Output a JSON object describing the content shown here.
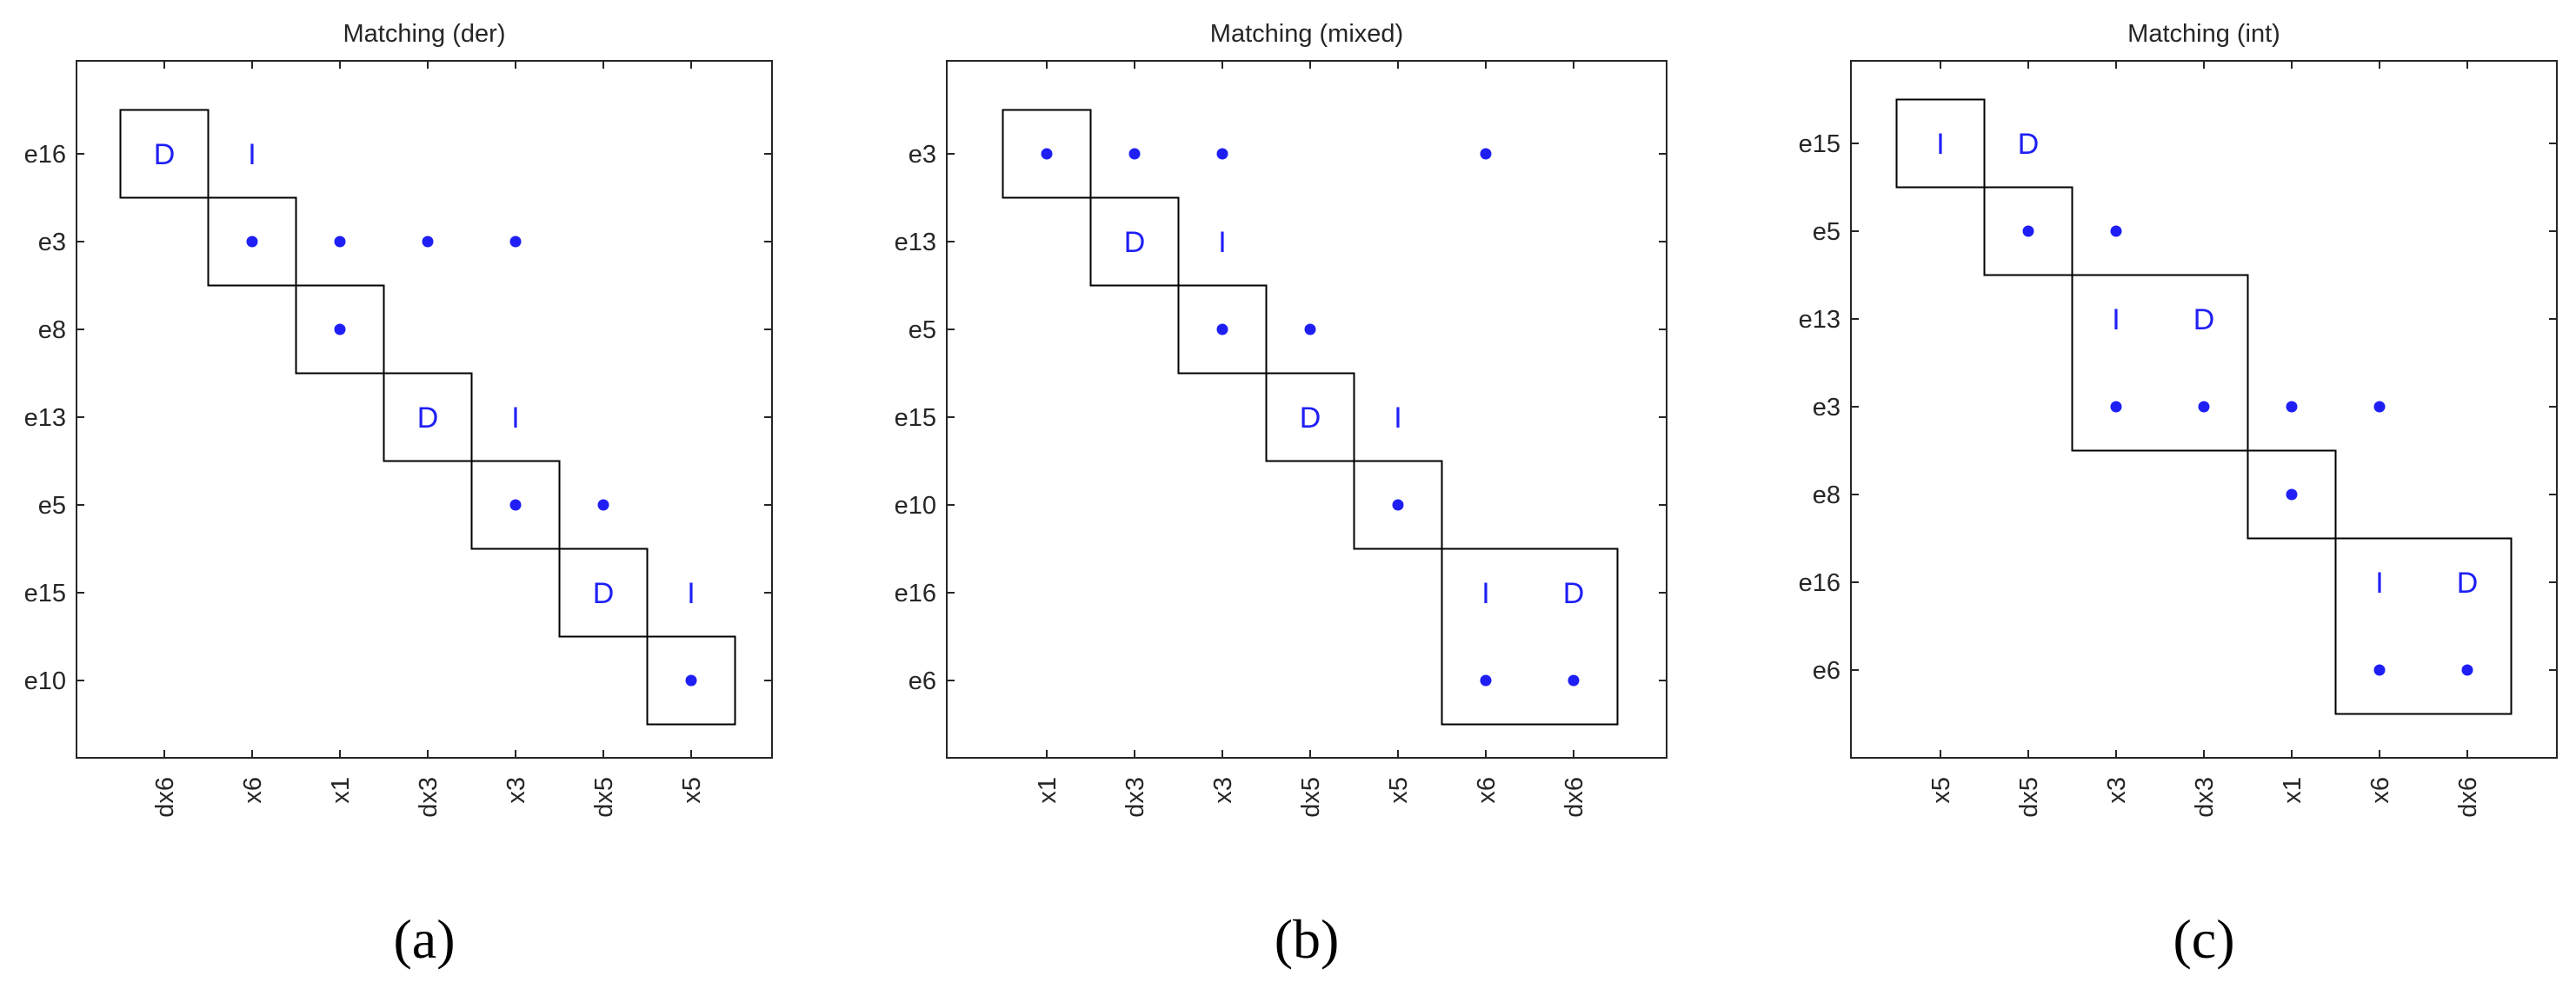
{
  "chart_data": [
    {
      "type": "scatter",
      "title": "Matching (der)",
      "caption": "(a)",
      "rows": [
        "e16",
        "e3",
        "e8",
        "e13",
        "e5",
        "e15",
        "e10"
      ],
      "cols": [
        "dx6",
        "x6",
        "x1",
        "dx3",
        "x3",
        "dx5",
        "x5"
      ],
      "blocks": [
        {
          "rows": [
            "e16"
          ],
          "cols": [
            "dx6"
          ]
        },
        {
          "rows": [
            "e3"
          ],
          "cols": [
            "x6"
          ]
        },
        {
          "rows": [
            "e8"
          ],
          "cols": [
            "x1"
          ]
        },
        {
          "rows": [
            "e13"
          ],
          "cols": [
            "dx3"
          ]
        },
        {
          "rows": [
            "e5"
          ],
          "cols": [
            "x3"
          ]
        },
        {
          "rows": [
            "e15"
          ],
          "cols": [
            "dx5"
          ]
        },
        {
          "rows": [
            "e10"
          ],
          "cols": [
            "x5"
          ]
        }
      ],
      "marks": [
        {
          "row": "e16",
          "col": "dx6",
          "mark": "D"
        },
        {
          "row": "e16",
          "col": "x6",
          "mark": "I"
        },
        {
          "row": "e3",
          "col": "x6",
          "mark": "dot"
        },
        {
          "row": "e3",
          "col": "x1",
          "mark": "dot"
        },
        {
          "row": "e3",
          "col": "dx3",
          "mark": "dot"
        },
        {
          "row": "e3",
          "col": "x3",
          "mark": "dot"
        },
        {
          "row": "e8",
          "col": "x1",
          "mark": "dot"
        },
        {
          "row": "e13",
          "col": "dx3",
          "mark": "D"
        },
        {
          "row": "e13",
          "col": "x3",
          "mark": "I"
        },
        {
          "row": "e5",
          "col": "x3",
          "mark": "dot"
        },
        {
          "row": "e5",
          "col": "dx5",
          "mark": "dot"
        },
        {
          "row": "e15",
          "col": "dx5",
          "mark": "D"
        },
        {
          "row": "e15",
          "col": "x5",
          "mark": "I"
        },
        {
          "row": "e10",
          "col": "x5",
          "mark": "dot"
        }
      ]
    },
    {
      "type": "scatter",
      "title": "Matching (mixed)",
      "caption": "(b)",
      "rows": [
        "e3",
        "e13",
        "e5",
        "e15",
        "e10",
        "e16",
        "e6"
      ],
      "cols": [
        "x1",
        "dx3",
        "x3",
        "dx5",
        "x5",
        "x6",
        "dx6"
      ],
      "blocks": [
        {
          "rows": [
            "e3"
          ],
          "cols": [
            "x1"
          ]
        },
        {
          "rows": [
            "e13"
          ],
          "cols": [
            "dx3"
          ]
        },
        {
          "rows": [
            "e5"
          ],
          "cols": [
            "x3"
          ]
        },
        {
          "rows": [
            "e15"
          ],
          "cols": [
            "dx5"
          ]
        },
        {
          "rows": [
            "e10"
          ],
          "cols": [
            "x5"
          ]
        },
        {
          "rows": [
            "e16",
            "e6"
          ],
          "cols": [
            "x6",
            "dx6"
          ]
        }
      ],
      "marks": [
        {
          "row": "e3",
          "col": "x1",
          "mark": "dot"
        },
        {
          "row": "e3",
          "col": "dx3",
          "mark": "dot"
        },
        {
          "row": "e3",
          "col": "x3",
          "mark": "dot"
        },
        {
          "row": "e3",
          "col": "x6",
          "mark": "dot"
        },
        {
          "row": "e13",
          "col": "dx3",
          "mark": "D"
        },
        {
          "row": "e13",
          "col": "x3",
          "mark": "I"
        },
        {
          "row": "e5",
          "col": "x3",
          "mark": "dot"
        },
        {
          "row": "e5",
          "col": "dx5",
          "mark": "dot"
        },
        {
          "row": "e15",
          "col": "dx5",
          "mark": "D"
        },
        {
          "row": "e15",
          "col": "x5",
          "mark": "I"
        },
        {
          "row": "e10",
          "col": "x5",
          "mark": "dot"
        },
        {
          "row": "e16",
          "col": "x6",
          "mark": "I"
        },
        {
          "row": "e16",
          "col": "dx6",
          "mark": "D"
        },
        {
          "row": "e6",
          "col": "x6",
          "mark": "dot"
        },
        {
          "row": "e6",
          "col": "dx6",
          "mark": "dot"
        }
      ]
    },
    {
      "type": "scatter",
      "title": "Matching (int)",
      "caption": "(c)",
      "rows": [
        "e15",
        "e5",
        "e13",
        "e3",
        "e8",
        "e16",
        "e6"
      ],
      "cols": [
        "x5",
        "dx5",
        "x3",
        "dx3",
        "x1",
        "x6",
        "dx6"
      ],
      "blocks": [
        {
          "rows": [
            "e15"
          ],
          "cols": [
            "x5"
          ]
        },
        {
          "rows": [
            "e5"
          ],
          "cols": [
            "dx5"
          ]
        },
        {
          "rows": [
            "e13",
            "e3"
          ],
          "cols": [
            "x3",
            "dx3"
          ]
        },
        {
          "rows": [
            "e8"
          ],
          "cols": [
            "x1"
          ]
        },
        {
          "rows": [
            "e16",
            "e6"
          ],
          "cols": [
            "x6",
            "dx6"
          ]
        }
      ],
      "marks": [
        {
          "row": "e15",
          "col": "x5",
          "mark": "I"
        },
        {
          "row": "e15",
          "col": "dx5",
          "mark": "D"
        },
        {
          "row": "e5",
          "col": "dx5",
          "mark": "dot"
        },
        {
          "row": "e5",
          "col": "x3",
          "mark": "dot"
        },
        {
          "row": "e13",
          "col": "x3",
          "mark": "I"
        },
        {
          "row": "e13",
          "col": "dx3",
          "mark": "D"
        },
        {
          "row": "e3",
          "col": "x3",
          "mark": "dot"
        },
        {
          "row": "e3",
          "col": "dx3",
          "mark": "dot"
        },
        {
          "row": "e3",
          "col": "x1",
          "mark": "dot"
        },
        {
          "row": "e3",
          "col": "x6",
          "mark": "dot"
        },
        {
          "row": "e8",
          "col": "x1",
          "mark": "dot"
        },
        {
          "row": "e16",
          "col": "x6",
          "mark": "I"
        },
        {
          "row": "e16",
          "col": "dx6",
          "mark": "D"
        },
        {
          "row": "e6",
          "col": "x6",
          "mark": "dot"
        },
        {
          "row": "e6",
          "col": "dx6",
          "mark": "dot"
        }
      ]
    }
  ],
  "colors": {
    "marker": "#1f1ff5",
    "axes": "#262626",
    "block": "#000000",
    "ticks": "#262626"
  }
}
